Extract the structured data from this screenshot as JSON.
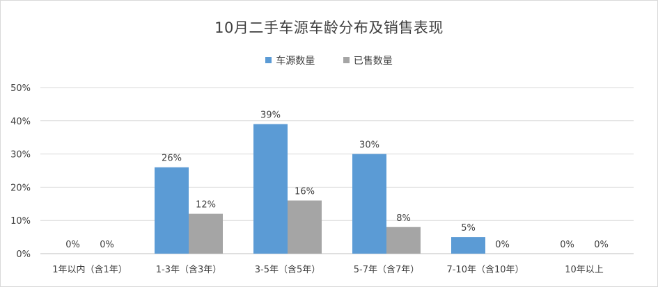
{
  "chart_data": {
    "type": "bar",
    "title": "10月二手车源车龄分布及销售表现",
    "categories": [
      "1年以内（含1年）",
      "1-3年（含3年）",
      "3-5年（含5年）",
      "5-7年（含7年）",
      "7-10年（含10年）",
      "10年以上"
    ],
    "series": [
      {
        "name": "车源数量",
        "color": "#5b9bd5",
        "values": [
          0,
          26,
          39,
          30,
          5,
          0
        ],
        "labels": [
          "0%",
          "26%",
          "39%",
          "30%",
          "5%",
          "0%"
        ]
      },
      {
        "name": "已售数量",
        "color": "#a5a5a5",
        "values": [
          0,
          12,
          16,
          8,
          0,
          0
        ],
        "labels": [
          "0%",
          "12%",
          "16%",
          "8%",
          "0%",
          "0%"
        ]
      }
    ],
    "yticks": [
      "0%",
      "10%",
      "20%",
      "30%",
      "40%",
      "50%"
    ],
    "ylim": [
      0,
      50
    ],
    "grid": true,
    "legend_position": "top"
  }
}
